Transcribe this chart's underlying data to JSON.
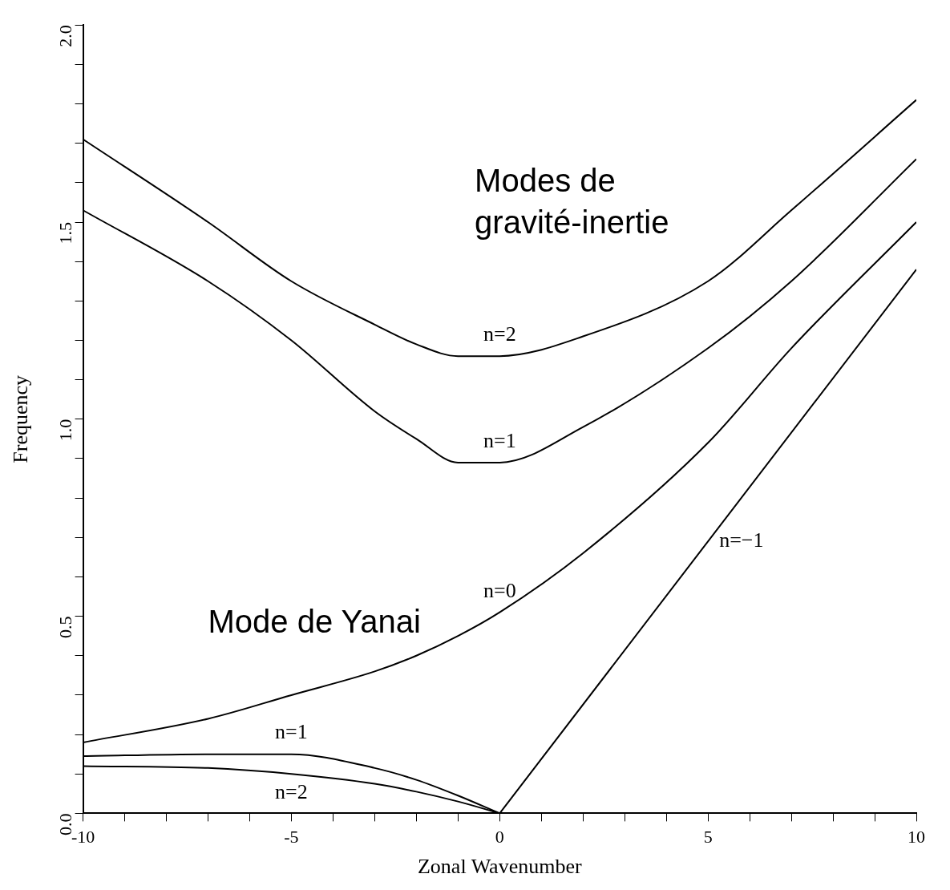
{
  "chart_data": {
    "type": "line",
    "xlabel": "Zonal Wavenumber",
    "ylabel": "Frequency",
    "xlim": [
      -10,
      10
    ],
    "ylim": [
      0,
      2
    ],
    "xticks": [
      -10,
      {
        "value": -9,
        "label": null
      },
      {
        "value": -8,
        "label": null
      },
      {
        "value": -7,
        "label": null
      },
      {
        "value": -6,
        "label": null
      },
      -5,
      {
        "value": -4,
        "label": null
      },
      {
        "value": -3,
        "label": null
      },
      {
        "value": -2,
        "label": null
      },
      {
        "value": -1,
        "label": null
      },
      0,
      {
        "value": 1,
        "label": null
      },
      {
        "value": 2,
        "label": null
      },
      {
        "value": 3,
        "label": null
      },
      {
        "value": 4,
        "label": null
      },
      5,
      {
        "value": 6,
        "label": null
      },
      {
        "value": 7,
        "label": null
      },
      {
        "value": 8,
        "label": null
      },
      {
        "value": 9,
        "label": null
      },
      10
    ],
    "yticks": [
      {
        "value": 0,
        "label": "0.0"
      },
      {
        "value": 0.1,
        "label": null
      },
      {
        "value": 0.2,
        "label": null
      },
      {
        "value": 0.3,
        "label": null
      },
      {
        "value": 0.4,
        "label": null
      },
      {
        "value": 0.5,
        "label": "0.5"
      },
      {
        "value": 0.6,
        "label": null
      },
      {
        "value": 0.7,
        "label": null
      },
      {
        "value": 0.8,
        "label": null
      },
      {
        "value": 0.9,
        "label": null
      },
      {
        "value": 1,
        "label": "1.0"
      },
      {
        "value": 1.1,
        "label": null
      },
      {
        "value": 1.2,
        "label": null
      },
      {
        "value": 1.3,
        "label": null
      },
      {
        "value": 1.4,
        "label": null
      },
      {
        "value": 1.5,
        "label": "1.5"
      },
      {
        "value": 1.6,
        "label": null
      },
      {
        "value": 1.7,
        "label": null
      },
      {
        "value": 1.8,
        "label": null
      },
      {
        "value": 1.9,
        "label": null
      },
      {
        "value": 2,
        "label": "2.0"
      }
    ],
    "grid": false,
    "legend": false,
    "marker": "none",
    "line_style": "solid",
    "series": [
      {
        "name": "n=2",
        "color": "#000000",
        "x": [
          -10,
          -7,
          -5,
          -3,
          -2,
          -1,
          0,
          2,
          5,
          7,
          10
        ],
        "values": [
          1.71,
          1.5,
          1.35,
          1.24,
          1.19,
          1.16,
          1.16,
          1.21,
          1.35,
          1.53,
          1.81
        ]
      },
      {
        "name": "n=1",
        "color": "#000000",
        "x": [
          -10,
          -7,
          -5,
          -3,
          -2,
          -1,
          0,
          2,
          5,
          7,
          10
        ],
        "values": [
          1.53,
          1.35,
          1.2,
          1.02,
          0.95,
          0.89,
          0.89,
          0.98,
          1.18,
          1.35,
          1.66
        ]
      },
      {
        "name": "n=0",
        "color": "#000000",
        "x": [
          -10,
          -7,
          -5,
          -3,
          -2,
          -1,
          0,
          2,
          5,
          7,
          10
        ],
        "values": [
          0.18,
          0.24,
          0.3,
          0.36,
          0.4,
          0.45,
          0.51,
          0.66,
          0.94,
          1.18,
          1.5
        ]
      },
      {
        "name": "n=−1",
        "color": "#000000",
        "x": [
          0,
          10
        ],
        "values": [
          0,
          1.38
        ]
      },
      {
        "name": "n=1",
        "color": "#000000",
        "x": [
          -10,
          -7,
          -5,
          -3,
          -2,
          -1,
          0
        ],
        "values": [
          0.145,
          0.15,
          0.15,
          0.115,
          0.085,
          0.045,
          0
        ]
      },
      {
        "name": "n=2",
        "color": "#000000",
        "x": [
          -10,
          -7,
          -5,
          -3,
          -2,
          -1,
          0
        ],
        "values": [
          0.12,
          0.115,
          0.1,
          0.075,
          0.055,
          0.03,
          0
        ]
      }
    ],
    "annotations": [
      "Modes de\ngravité-inertie",
      "Mode de Yanai"
    ]
  }
}
